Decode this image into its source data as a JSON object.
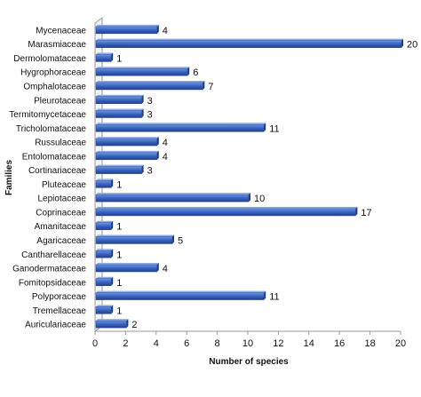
{
  "chart_data": {
    "type": "bar",
    "orientation": "horizontal",
    "categories": [
      "Mycenaceae",
      "Marasmiaceae",
      "Dermolomataceae",
      "Hygrophoraceae",
      "Omphalotaceae",
      "Pleurotaceae",
      "Termitomycetaceae",
      "Tricholomataceae",
      "Russulaceae",
      "Entolomataceae",
      "Cortinariaceae",
      "Pluteaceae",
      "Lepiotaceae",
      "Coprinaceae",
      "Amanitaceae",
      "Agaricaceae",
      "Cantharellaceae",
      "Ganodermataceae",
      "Fomitopsidaceae",
      "Polyporaceae",
      "Tremellaceae",
      "Auriculariaceae"
    ],
    "values": [
      4,
      20,
      1,
      6,
      7,
      3,
      3,
      11,
      4,
      4,
      3,
      1,
      10,
      17,
      1,
      5,
      1,
      4,
      1,
      11,
      1,
      2
    ],
    "xlabel": "Number of species",
    "ylabel": "Families",
    "xlim": [
      0,
      20
    ],
    "xticks": [
      0,
      2,
      4,
      6,
      8,
      10,
      12,
      14,
      16,
      18,
      20
    ],
    "data_labels": true,
    "grid": false,
    "legend": "none",
    "bar_color": "#3a66c4"
  }
}
